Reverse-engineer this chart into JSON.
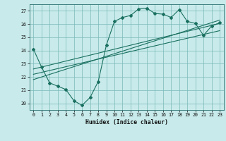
{
  "background_color": "#c8eaea",
  "grid_color": "#7ab8b8",
  "line_color": "#1a7060",
  "xlabel": "Humidex (Indice chaleur)",
  "xlim": [
    -0.5,
    23.5
  ],
  "ylim": [
    19.5,
    27.5
  ],
  "xticks": [
    0,
    1,
    2,
    3,
    4,
    5,
    6,
    7,
    8,
    9,
    10,
    11,
    12,
    13,
    14,
    15,
    16,
    17,
    18,
    19,
    20,
    21,
    22,
    23
  ],
  "yticks": [
    20,
    21,
    22,
    23,
    24,
    25,
    26,
    27
  ],
  "wavy_x": [
    0,
    1,
    2,
    3,
    4,
    5,
    6,
    7,
    8,
    9,
    10,
    11,
    12,
    13,
    14,
    15,
    16,
    17,
    18,
    19,
    20,
    21,
    22,
    23
  ],
  "wavy_y": [
    24.1,
    22.75,
    21.55,
    21.3,
    21.05,
    20.2,
    19.85,
    20.45,
    21.65,
    24.4,
    26.2,
    26.5,
    26.65,
    27.15,
    27.2,
    26.8,
    26.75,
    26.5,
    27.1,
    26.2,
    26.05,
    25.15,
    25.85,
    26.1
  ],
  "line1_x": [
    0,
    23
  ],
  "line1_y": [
    21.8,
    26.3
  ],
  "line2_x": [
    0,
    23
  ],
  "line2_y": [
    22.2,
    25.5
  ],
  "line3_x": [
    0,
    23
  ],
  "line3_y": [
    22.6,
    26.05
  ]
}
